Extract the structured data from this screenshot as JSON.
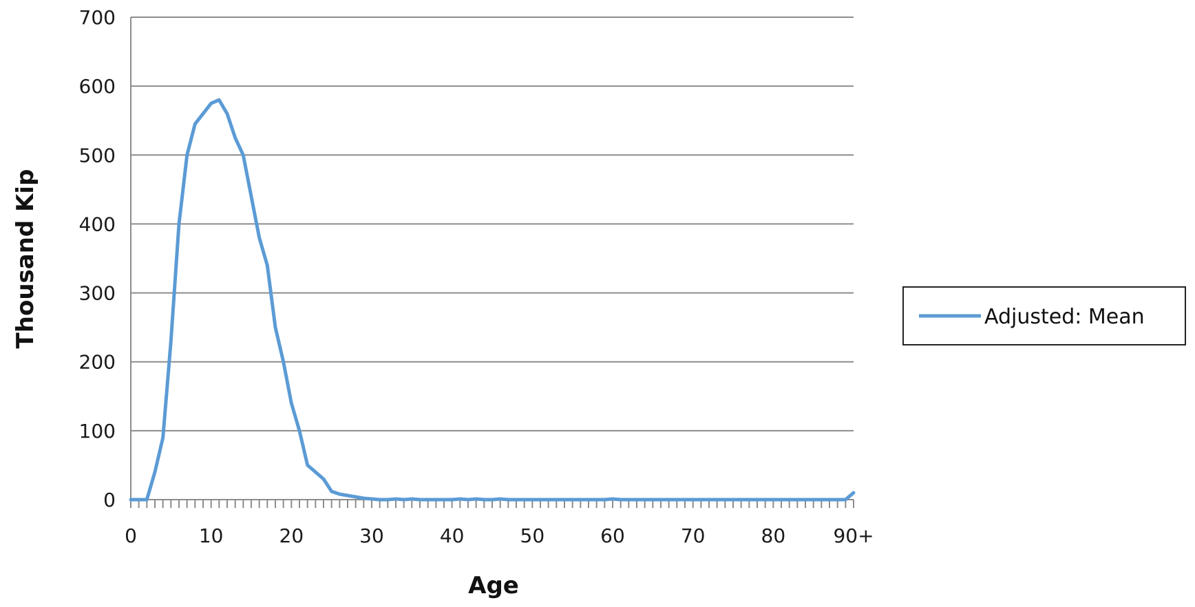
{
  "chart_data": {
    "type": "line",
    "xlabel": "Age",
    "ylabel": "Thousand Kip",
    "ylim": [
      0,
      700
    ],
    "xlim": [
      0,
      90
    ],
    "yticks": [
      "0",
      "100",
      "200",
      "300",
      "400",
      "500",
      "600",
      "700"
    ],
    "xticks": [
      "0",
      "10",
      "20",
      "30",
      "40",
      "50",
      "60",
      "70",
      "80",
      "90+"
    ],
    "grid": true,
    "legend_position": "right",
    "series": [
      {
        "name": "Adjusted: Mean",
        "color": "#5b9bd5",
        "x": [
          0,
          1,
          2,
          3,
          4,
          5,
          6,
          7,
          8,
          9,
          10,
          11,
          12,
          13,
          14,
          15,
          16,
          17,
          18,
          19,
          20,
          21,
          22,
          23,
          24,
          25,
          26,
          27,
          28,
          29,
          30,
          31,
          32,
          33,
          34,
          35,
          36,
          37,
          38,
          39,
          40,
          41,
          42,
          43,
          44,
          45,
          46,
          47,
          48,
          49,
          50,
          51,
          52,
          53,
          54,
          55,
          56,
          57,
          58,
          59,
          60,
          61,
          62,
          63,
          64,
          65,
          66,
          67,
          68,
          69,
          70,
          71,
          72,
          73,
          74,
          75,
          76,
          77,
          78,
          79,
          80,
          81,
          82,
          83,
          84,
          85,
          86,
          87,
          88,
          89,
          90
        ],
        "values": [
          0,
          0,
          0,
          40,
          90,
          230,
          400,
          500,
          545,
          560,
          575,
          580,
          560,
          525,
          500,
          440,
          380,
          340,
          250,
          200,
          140,
          100,
          50,
          40,
          30,
          12,
          8,
          6,
          4,
          2,
          1,
          0,
          0,
          1,
          0,
          1,
          0,
          0,
          0,
          0,
          0,
          1,
          0,
          1,
          0,
          0,
          1,
          0,
          0,
          0,
          0,
          0,
          0,
          0,
          0,
          0,
          0,
          0,
          0,
          0,
          1,
          0,
          0,
          0,
          0,
          0,
          0,
          0,
          0,
          0,
          0,
          0,
          0,
          0,
          0,
          0,
          0,
          0,
          0,
          0,
          0,
          0,
          0,
          0,
          0,
          0,
          0,
          0,
          0,
          0,
          10
        ]
      }
    ]
  }
}
